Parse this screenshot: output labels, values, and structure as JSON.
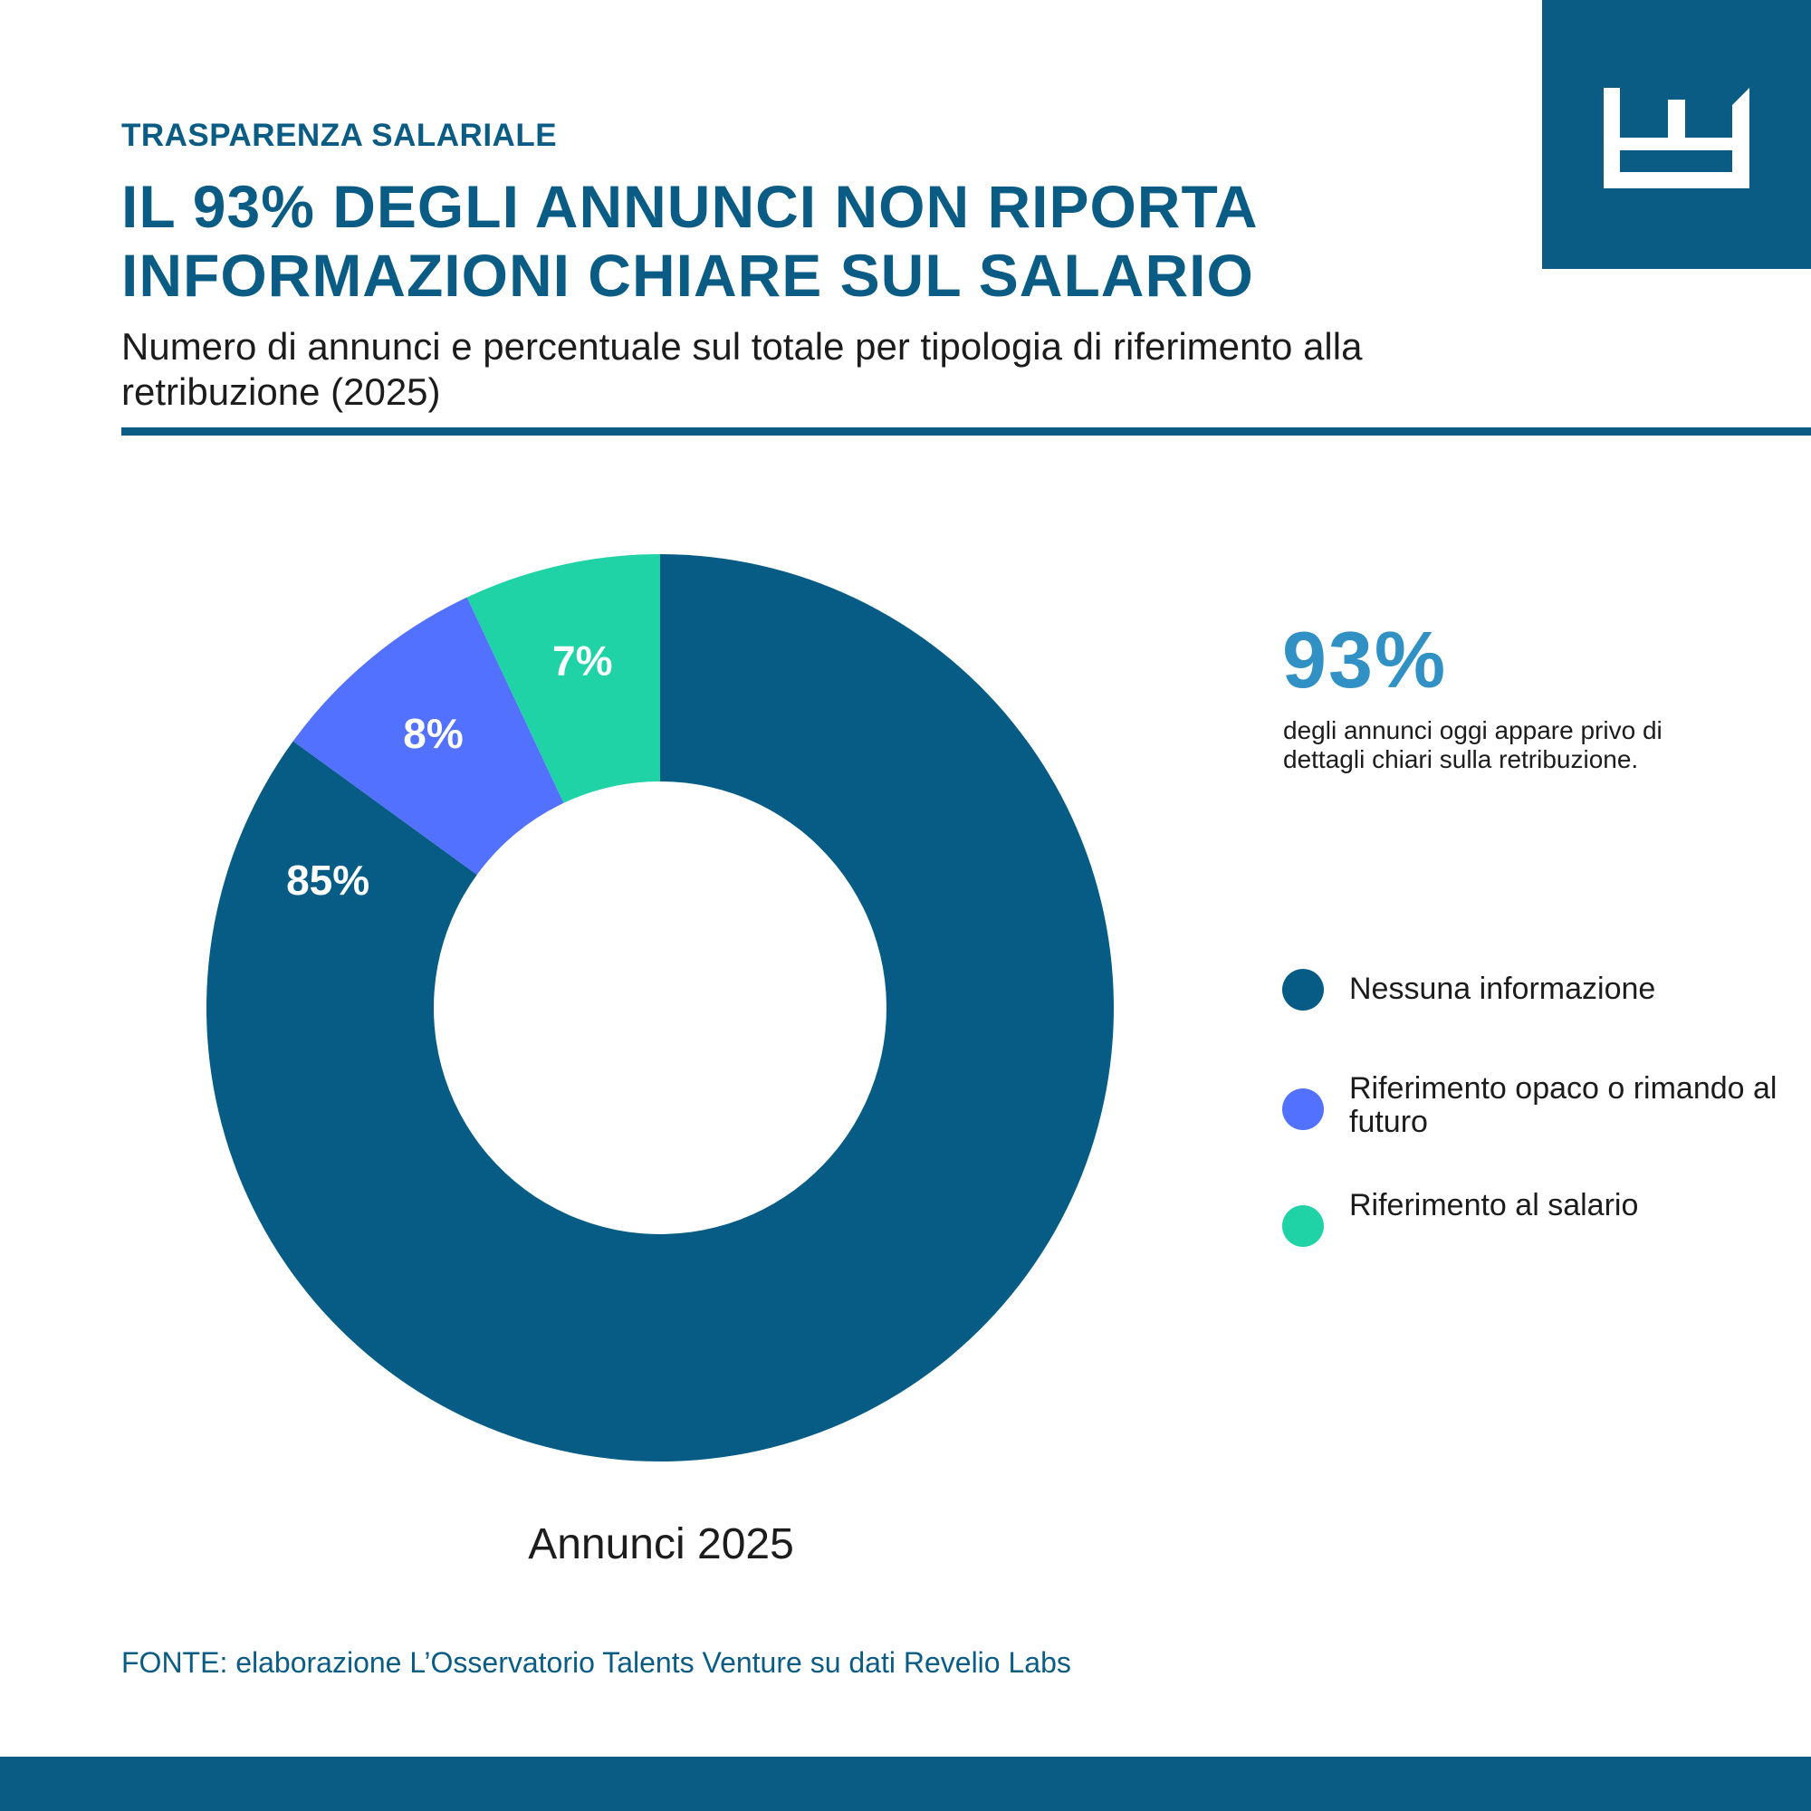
{
  "header": {
    "kicker": "TRASPARENZA SALARIALE",
    "headline": "IL 93% DEGLI ANNUNCI NON RIPORTA INFORMAZIONI CHIARE SUL SALARIO",
    "subtitle": "Numero di annunci e percentuale sul totale per tipologia di riferimento alla retribuzione (2025)"
  },
  "logo": {
    "icon": "crown-castle-logo-icon"
  },
  "highlight": {
    "value": "93%",
    "description": "degli annunci oggi appare privo di dettagli chiari sulla retribuzione."
  },
  "source": "FONTE: elaborazione L’Osservatorio Talents Venture su dati Revelio Labs",
  "colors": {
    "brand": "#0a5c85",
    "accent": "#3191c4"
  },
  "chart_data": {
    "type": "pie",
    "variant": "donut",
    "caption": "Annunci 2025",
    "legend_position": "right",
    "slices": [
      {
        "name": "Nessuna informazione",
        "value": 85,
        "label": "85%",
        "color": "#065c85"
      },
      {
        "name": "Riferimento opaco o rimando al futuro",
        "value": 8,
        "label": "8%",
        "color": "#5271ff"
      },
      {
        "name": "Riferimento al salario",
        "value": 7,
        "label": "7%",
        "color": "#1fd3a6"
      }
    ]
  }
}
